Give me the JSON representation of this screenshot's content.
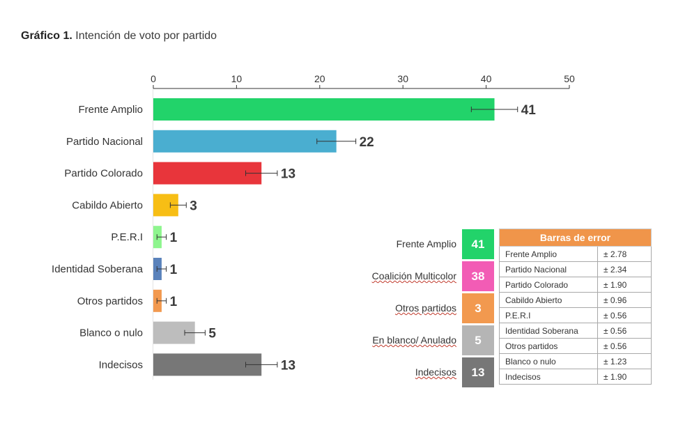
{
  "title": {
    "bold": "Gráfico 1.",
    "rest": " Intención de voto por partido"
  },
  "chart_data": {
    "type": "bar",
    "orientation": "horizontal",
    "categories": [
      "Frente Amplio",
      "Partido Nacional",
      "Partido Colorado",
      "Cabildo Abierto",
      "P.E.R.I",
      "Identidad Soberana",
      "Otros partidos",
      "Blanco o nulo",
      "Indecisos"
    ],
    "values": [
      41,
      22,
      13,
      3,
      1,
      1,
      1,
      5,
      13
    ],
    "value_labels": [
      "41",
      "22",
      "13",
      "3",
      "1",
      "1",
      "1",
      "5",
      "13"
    ],
    "errors": [
      2.78,
      2.34,
      1.9,
      0.96,
      0.56,
      0.56,
      0.56,
      1.23,
      1.9
    ],
    "colors": [
      "#22d36a",
      "#4aaed0",
      "#e8353b",
      "#f7be15",
      "#8ef58e",
      "#5a82bb",
      "#f2994f",
      "#bdbdbd",
      "#777777"
    ],
    "xlim": [
      0,
      50
    ],
    "xticks": [
      "0",
      "10",
      "20",
      "30",
      "40",
      "50"
    ],
    "xaxis_position": "top",
    "grid": false
  },
  "summary": [
    {
      "label": "Frente Amplio",
      "value": "41",
      "color": "#22d36a"
    },
    {
      "label": "Coalición Multicolor",
      "value": "38",
      "color": "#f25cb5"
    },
    {
      "label": "Otros partidos",
      "value": "3",
      "color": "#f2994f"
    },
    {
      "label": "En blanco/ Anulado",
      "value": "5",
      "color": "#b5b5b5"
    },
    {
      "label": "Indecisos",
      "value": "13",
      "color": "#777777"
    }
  ],
  "error_table": {
    "header": "Barras de error",
    "rows": [
      {
        "party": "Frente Amplio",
        "err": "± 2.78"
      },
      {
        "party": "Partido Nacional",
        "err": "± 2.34"
      },
      {
        "party": "Partido Colorado",
        "err": "± 1.90"
      },
      {
        "party": "Cabildo Abierto",
        "err": "± 0.96"
      },
      {
        "party": "P.E.R.I",
        "err": "± 0.56"
      },
      {
        "party": "Identidad Soberana",
        "err": "± 0.56"
      },
      {
        "party": "Otros partidos",
        "err": "± 0.56"
      },
      {
        "party": "Blanco o nulo",
        "err": "± 1.23"
      },
      {
        "party": "Indecisos",
        "err": "± 1.90"
      }
    ]
  }
}
